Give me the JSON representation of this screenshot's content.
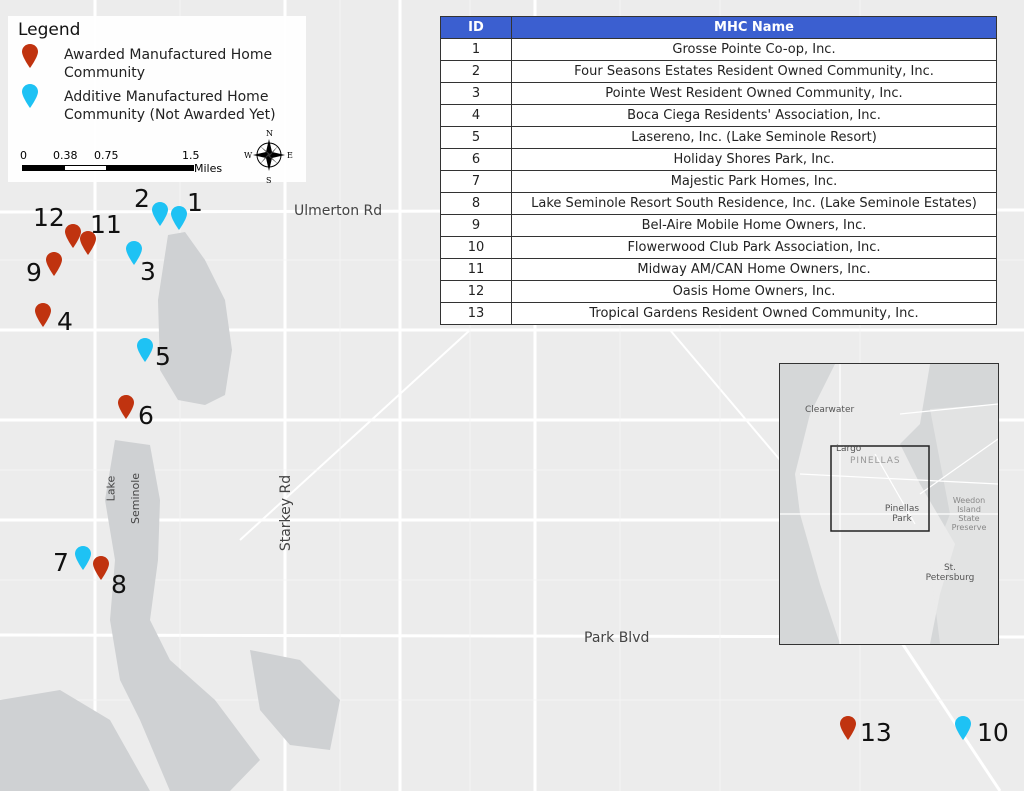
{
  "legend": {
    "title": "Legend",
    "items": [
      {
        "label": "Awarded Manufactured Home Community",
        "color": "#c0330f"
      },
      {
        "label": "Additive Manufactured Home Community (Not Awarded Yet)",
        "color": "#1ec2f4"
      }
    ]
  },
  "scale_bar": {
    "ticks": [
      "0",
      "0.38",
      "0.75",
      "1.5"
    ],
    "unit": "Miles"
  },
  "compass": {
    "n": "N",
    "s": "S",
    "e": "E",
    "w": "W"
  },
  "roads": {
    "ulmerton": "Ulmerton Rd",
    "park": "Park Blvd",
    "starkey": "Starkey Rd",
    "lake1": "Lake",
    "lake2": "Seminole"
  },
  "table": {
    "headers": [
      "ID",
      "MHC Name"
    ],
    "rows": [
      [
        "1",
        "Grosse Pointe Co-op, Inc."
      ],
      [
        "2",
        "Four Seasons Estates Resident Owned Community, Inc."
      ],
      [
        "3",
        "Pointe West Resident Owned Community, Inc."
      ],
      [
        "4",
        "Boca Ciega Residents' Association, Inc."
      ],
      [
        "5",
        "Lasereno, Inc. (Lake Seminole Resort)"
      ],
      [
        "6",
        "Holiday Shores Park, Inc."
      ],
      [
        "7",
        "Majestic Park Homes, Inc."
      ],
      [
        "8",
        "Lake Seminole Resort South Residence, Inc. (Lake Seminole Estates)"
      ],
      [
        "9",
        "Bel-Aire Mobile Home Owners, Inc."
      ],
      [
        "10",
        "Flowerwood Club Park Association, Inc."
      ],
      [
        "11",
        "Midway AM/CAN Home Owners, Inc."
      ],
      [
        "12",
        "Oasis Home Owners, Inc."
      ],
      [
        "13",
        "Tropical Gardens Resident Owned Community, Inc."
      ]
    ]
  },
  "markers": [
    {
      "id": "1",
      "type": "additive"
    },
    {
      "id": "2",
      "type": "additive"
    },
    {
      "id": "3",
      "type": "additive"
    },
    {
      "id": "4",
      "type": "awarded"
    },
    {
      "id": "5",
      "type": "additive"
    },
    {
      "id": "6",
      "type": "awarded"
    },
    {
      "id": "7",
      "type": "additive"
    },
    {
      "id": "8",
      "type": "awarded"
    },
    {
      "id": "9",
      "type": "awarded"
    },
    {
      "id": "10",
      "type": "additive"
    },
    {
      "id": "11",
      "type": "awarded"
    },
    {
      "id": "12",
      "type": "awarded"
    },
    {
      "id": "13",
      "type": "awarded"
    }
  ],
  "inset": {
    "labels": [
      "Clearwater",
      "Largo",
      "PINELLAS",
      "Pinellas Park",
      "Weedon Island State Preserve",
      "St. Petersburg"
    ]
  }
}
